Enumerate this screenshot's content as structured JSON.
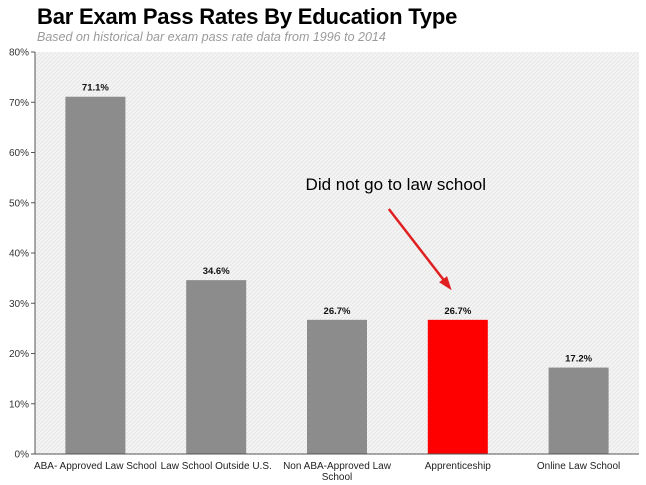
{
  "chart_data": {
    "type": "bar",
    "title": "Bar Exam Pass Rates By Education Type",
    "subtitle": "Based on historical bar exam pass rate data from 1996 to 2014",
    "categories": [
      "ABA- Approved Law School",
      "Law School Outside U.S.",
      "Non ABA-Approved Law School",
      "Apprenticeship",
      "Online Law School"
    ],
    "category_lines": [
      [
        "ABA- Approved Law School"
      ],
      [
        "Law School Outside U.S."
      ],
      [
        "Non ABA-Approved Law",
        "School"
      ],
      [
        "Apprenticeship"
      ],
      [
        "Online Law School"
      ]
    ],
    "values": [
      71.1,
      34.6,
      26.7,
      26.7,
      17.2
    ],
    "data_labels": [
      "71.1%",
      "34.6%",
      "26.7%",
      "26.7%",
      "17.2%"
    ],
    "colors": [
      "#8c8c8c",
      "#8c8c8c",
      "#8c8c8c",
      "#ff0000",
      "#8c8c8c"
    ],
    "ylim": [
      0,
      80
    ],
    "yticks": [
      0,
      10,
      20,
      30,
      40,
      50,
      60,
      70,
      80
    ],
    "ytick_labels": [
      "0%",
      "10%",
      "20%",
      "30%",
      "40%",
      "50%",
      "60%",
      "70%",
      "80%"
    ],
    "xlabel": "",
    "ylabel": "",
    "grid": false,
    "annotation": {
      "text": "Did not go to law school",
      "target_category": "Apprenticeship",
      "arrow_color": "#e02020"
    }
  }
}
